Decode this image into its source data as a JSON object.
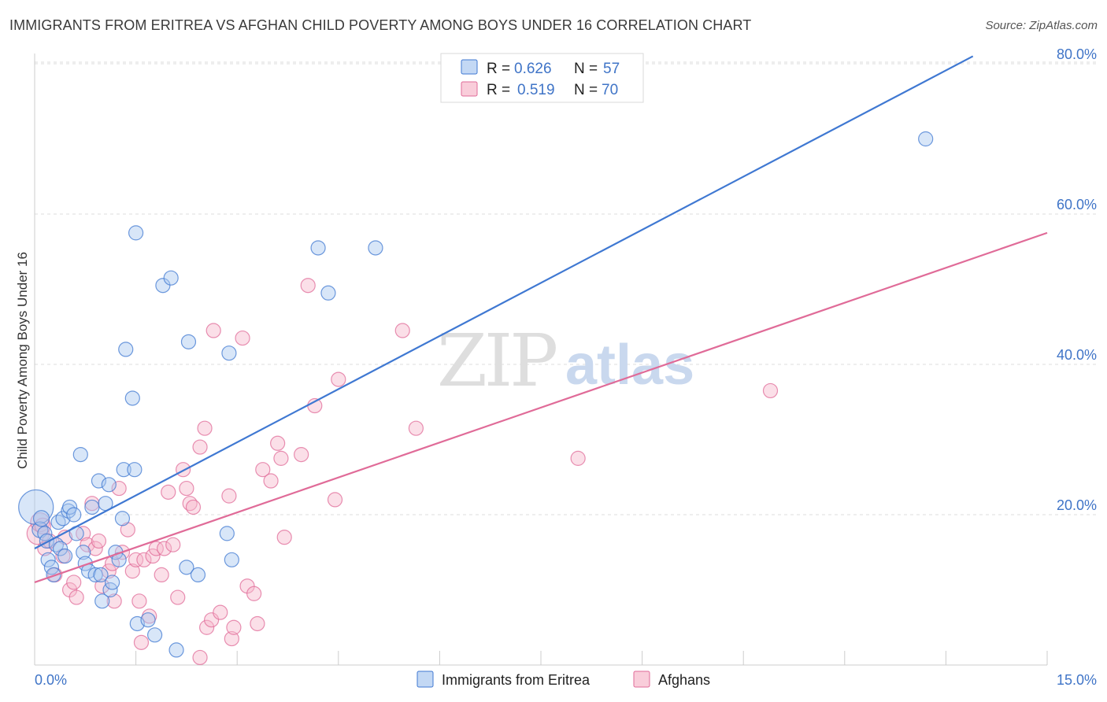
{
  "header": {
    "title": "IMMIGRANTS FROM ERITREA VS AFGHAN CHILD POVERTY AMONG BOYS UNDER 16 CORRELATION CHART",
    "source": "Source: ZipAtlas.com"
  },
  "colors": {
    "blue": "#3f78d2",
    "blue_fill": "#a9c8f0",
    "pink": "#e06b98",
    "pink_fill": "#f6b8cb",
    "value_text": "#3f74c7"
  },
  "watermark": {
    "part1": "ZIP",
    "part2": "atlas"
  },
  "legend": {
    "r_label": "R =",
    "n_label": "N =",
    "rows": [
      {
        "series": "Immigrants from Eritrea",
        "r": "0.626",
        "n": "57"
      },
      {
        "series": "Afghans",
        "r": "0.519",
        "n": "70"
      }
    ]
  },
  "chart_data": {
    "type": "scatter",
    "title": "IMMIGRANTS FROM ERITREA VS AFGHAN CHILD POVERTY AMONG BOYS UNDER 16 CORRELATION CHART",
    "xlabel": "",
    "ylabel": "Child Poverty Among Boys Under 16",
    "xlim": [
      0,
      15
    ],
    "ylim": [
      0,
      82
    ],
    "x_tick_labels": [
      "0.0%",
      "15.0%"
    ],
    "y_ticks": [
      20,
      40,
      60,
      80
    ],
    "y_tick_labels": [
      "20.0%",
      "40.0%",
      "60.0%",
      "80.0%"
    ],
    "grid": true,
    "legend_position": "top-center",
    "series": [
      {
        "name": "Immigrants from Eritrea",
        "color": "#3f78d2",
        "trend": {
          "x0": 0,
          "y0": 15.5,
          "x1": 13.9,
          "y1": 81
        },
        "points": [
          [
            0.02,
            21,
            22
          ],
          [
            0.08,
            18,
            10
          ],
          [
            0.1,
            19.5,
            10
          ],
          [
            0.15,
            17.5,
            9
          ],
          [
            0.18,
            16.5,
            9
          ],
          [
            0.2,
            14,
            9
          ],
          [
            0.25,
            13,
            9
          ],
          [
            0.28,
            12,
            9
          ],
          [
            0.32,
            16,
            9
          ],
          [
            0.35,
            19,
            9
          ],
          [
            0.38,
            15.5,
            9
          ],
          [
            0.42,
            19.5,
            9
          ],
          [
            0.45,
            14.5,
            9
          ],
          [
            0.5,
            20.5,
            9
          ],
          [
            0.52,
            21,
            9
          ],
          [
            0.58,
            20,
            9
          ],
          [
            0.62,
            17.5,
            9
          ],
          [
            0.68,
            28,
            9
          ],
          [
            0.72,
            15,
            9
          ],
          [
            0.75,
            13.5,
            9
          ],
          [
            0.8,
            12.5,
            9
          ],
          [
            0.85,
            21,
            9
          ],
          [
            0.9,
            12,
            9
          ],
          [
            0.95,
            24.5,
            9
          ],
          [
            0.98,
            12,
            9
          ],
          [
            1.0,
            8.5,
            9
          ],
          [
            1.05,
            21.5,
            9
          ],
          [
            1.1,
            24,
            9
          ],
          [
            1.12,
            10,
            9
          ],
          [
            1.15,
            11,
            9
          ],
          [
            1.2,
            15,
            9
          ],
          [
            1.25,
            14,
            9
          ],
          [
            1.3,
            19.5,
            9
          ],
          [
            1.32,
            26,
            9
          ],
          [
            1.35,
            42,
            9
          ],
          [
            1.45,
            35.5,
            9
          ],
          [
            1.48,
            26,
            9
          ],
          [
            1.5,
            57.5,
            9
          ],
          [
            1.52,
            5.5,
            9
          ],
          [
            1.68,
            6,
            9
          ],
          [
            1.78,
            4,
            9
          ],
          [
            1.9,
            50.5,
            9
          ],
          [
            2.02,
            51.5,
            9
          ],
          [
            2.1,
            2,
            9
          ],
          [
            2.25,
            13,
            9
          ],
          [
            2.28,
            43,
            9
          ],
          [
            2.42,
            12,
            9
          ],
          [
            2.85,
            17.5,
            9
          ],
          [
            2.88,
            41.5,
            9
          ],
          [
            2.92,
            14,
            9
          ],
          [
            4.2,
            55.5,
            9
          ],
          [
            4.35,
            49.5,
            9
          ],
          [
            5.05,
            55.5,
            9
          ],
          [
            13.2,
            70,
            9
          ]
        ]
      },
      {
        "name": "Afghans",
        "color": "#e06b98",
        "trend": {
          "x0": 0,
          "y0": 11,
          "x1": 15,
          "y1": 57.5
        },
        "points": [
          [
            0.05,
            17.5,
            14
          ],
          [
            0.08,
            19,
            12
          ],
          [
            0.12,
            18.5,
            10
          ],
          [
            0.15,
            15.5,
            9
          ],
          [
            0.22,
            16.5,
            9
          ],
          [
            0.3,
            12,
            9
          ],
          [
            0.42,
            14.5,
            9
          ],
          [
            0.45,
            17,
            9
          ],
          [
            0.52,
            10,
            9
          ],
          [
            0.58,
            11,
            9
          ],
          [
            0.62,
            9,
            9
          ],
          [
            0.72,
            17.5,
            9
          ],
          [
            0.78,
            16,
            9
          ],
          [
            0.85,
            21.5,
            9
          ],
          [
            0.9,
            15.5,
            9
          ],
          [
            0.95,
            16.5,
            9
          ],
          [
            1.0,
            10.5,
            9
          ],
          [
            1.1,
            12.5,
            9
          ],
          [
            1.15,
            13.5,
            9
          ],
          [
            1.18,
            8.5,
            9
          ],
          [
            1.25,
            23.5,
            9
          ],
          [
            1.3,
            15,
            9
          ],
          [
            1.38,
            18,
            9
          ],
          [
            1.45,
            12.5,
            9
          ],
          [
            1.5,
            14,
            9
          ],
          [
            1.55,
            8.5,
            9
          ],
          [
            1.58,
            3,
            9
          ],
          [
            1.62,
            14,
            9
          ],
          [
            1.7,
            6.5,
            9
          ],
          [
            1.75,
            14.5,
            9
          ],
          [
            1.8,
            15.5,
            9
          ],
          [
            1.88,
            12,
            9
          ],
          [
            1.92,
            15.5,
            9
          ],
          [
            1.98,
            23,
            9
          ],
          [
            2.05,
            16,
            9
          ],
          [
            2.12,
            9,
            9
          ],
          [
            2.2,
            26,
            9
          ],
          [
            2.25,
            23.5,
            9
          ],
          [
            2.3,
            21.5,
            9
          ],
          [
            2.35,
            21,
            9
          ],
          [
            2.45,
            29,
            9
          ],
          [
            2.52,
            31.5,
            9
          ],
          [
            2.55,
            5,
            9
          ],
          [
            2.62,
            6,
            9
          ],
          [
            2.65,
            44.5,
            9
          ],
          [
            2.75,
            7,
            9
          ],
          [
            2.88,
            22.5,
            9
          ],
          [
            2.92,
            3.5,
            9
          ],
          [
            2.95,
            5,
            9
          ],
          [
            3.08,
            43.5,
            9
          ],
          [
            3.15,
            10.5,
            9
          ],
          [
            3.25,
            9.5,
            9
          ],
          [
            3.3,
            5.5,
            9
          ],
          [
            3.38,
            26,
            9
          ],
          [
            3.5,
            24.5,
            9
          ],
          [
            3.6,
            29.5,
            9
          ],
          [
            3.65,
            27.5,
            9
          ],
          [
            3.7,
            17,
            9
          ],
          [
            3.95,
            28,
            9
          ],
          [
            4.05,
            50.5,
            9
          ],
          [
            4.15,
            34.5,
            9
          ],
          [
            4.45,
            22,
            9
          ],
          [
            4.5,
            38,
            9
          ],
          [
            5.45,
            44.5,
            9
          ],
          [
            5.65,
            31.5,
            9
          ],
          [
            8.05,
            27.5,
            9
          ],
          [
            10.9,
            36.5,
            9
          ],
          [
            2.45,
            1,
            9
          ]
        ]
      }
    ]
  }
}
